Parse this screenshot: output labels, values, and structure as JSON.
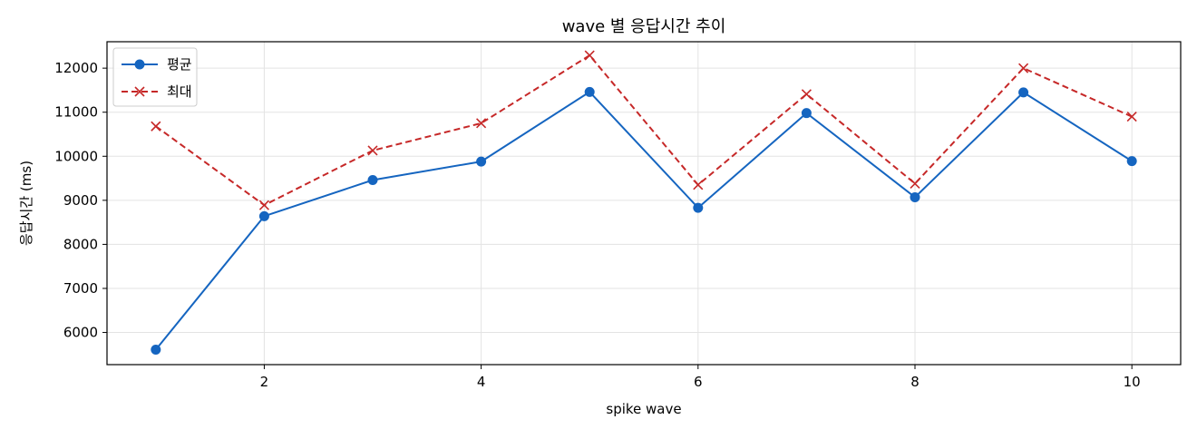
{
  "chart_data": {
    "type": "line",
    "title": "wave 별 응답시간 추이",
    "xlabel": "spike wave",
    "ylabel": "응답시간 (ms)",
    "x": [
      1,
      2,
      3,
      4,
      5,
      6,
      7,
      8,
      9,
      10
    ],
    "xlim": [
      0.55,
      10.45
    ],
    "ylim": [
      5270,
      12600
    ],
    "xticks": [
      2,
      4,
      6,
      8,
      10
    ],
    "yticks": [
      6000,
      7000,
      8000,
      9000,
      10000,
      11000,
      12000
    ],
    "grid": true,
    "legend_position": "top-left",
    "series": [
      {
        "name": "평균",
        "color": "#1565c0",
        "line_style": "solid",
        "marker": "circle",
        "values": [
          5610,
          8640,
          9460,
          9880,
          11460,
          8830,
          10980,
          9070,
          11450,
          9890
        ]
      },
      {
        "name": "최대",
        "color": "#c62828",
        "line_style": "dashed",
        "marker": "x",
        "values": [
          10680,
          8890,
          10130,
          10750,
          12290,
          9350,
          11410,
          9380,
          12000,
          10900
        ]
      }
    ]
  }
}
